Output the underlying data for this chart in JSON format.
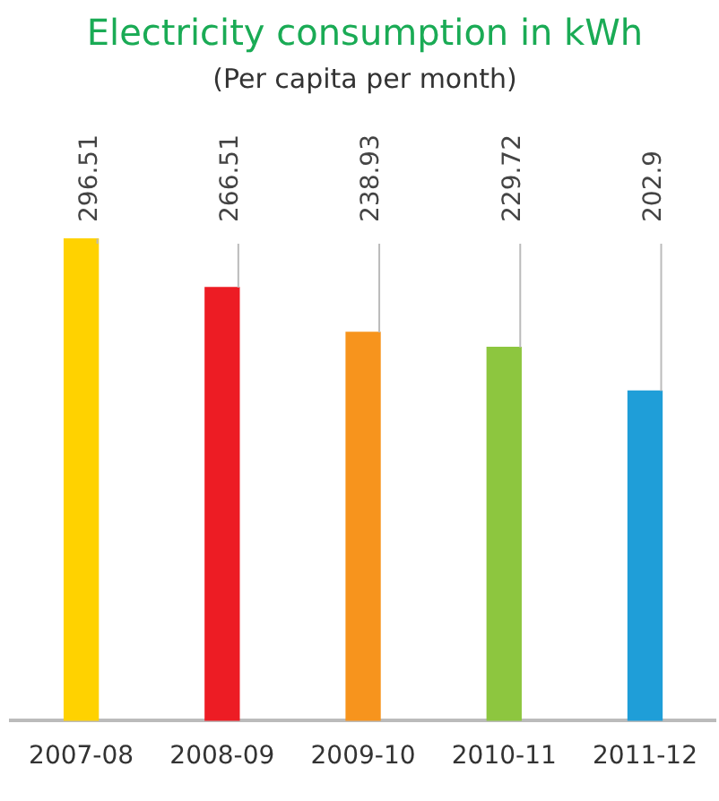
{
  "chart_data": {
    "type": "bar",
    "title": "Electricity consumption in kWh",
    "subtitle": "(Per capita per month)",
    "categories": [
      "2007-08",
      "2008-09",
      "2009-10",
      "2010-11",
      "2011-12"
    ],
    "values": [
      296.51,
      266.51,
      238.93,
      229.72,
      202.9
    ],
    "colors": [
      "#ffd200",
      "#ed1c24",
      "#f7941d",
      "#8dc63f",
      "#1f9ed8"
    ],
    "data_labels": true,
    "grid": false,
    "legend": false
  }
}
